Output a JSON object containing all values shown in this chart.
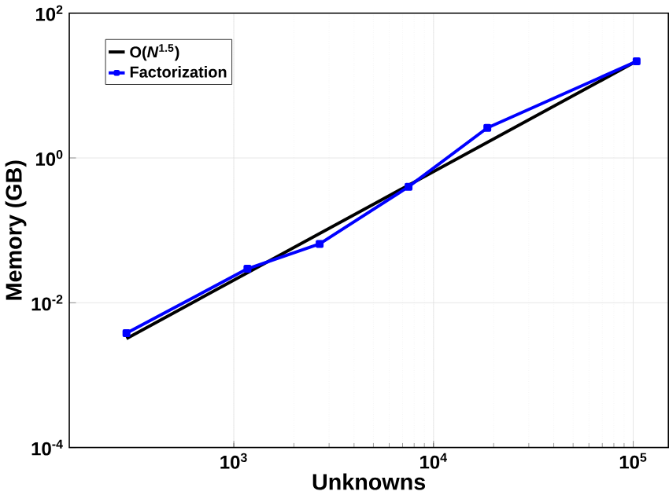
{
  "chart_data": {
    "type": "line",
    "xlabel": "Unknowns",
    "ylabel": "Memory (GB)",
    "log": "xy",
    "grid": true,
    "legend": "top left",
    "xlim": [
      150,
      150000
    ],
    "ylim": [
      0.0001,
      100
    ],
    "xticks": [
      {
        "value": 1000,
        "label": "10$^{3}$"
      },
      {
        "value": 10000,
        "label": "10$^{4}$"
      },
      {
        "value": 100000,
        "label": "10$^{5}$"
      }
    ],
    "yticks": [
      {
        "value": 0.0001,
        "label": "10$^{-4}$"
      },
      {
        "value": 0.01,
        "label": "10$^{-2}$"
      },
      {
        "value": 1,
        "label": "10$^{0}$"
      },
      {
        "value": 100,
        "label": "10$^{2}$"
      }
    ],
    "series": [
      {
        "name": "O(*N*$^{1.5}$)",
        "color": "#000000",
        "marker": "none",
        "x": [
          290,
          104000
        ],
        "values": [
          0.0032,
          21.7
        ]
      },
      {
        "name": "Factorization",
        "color": "#0000ff",
        "marker": "square",
        "x": [
          290,
          1170,
          2690,
          7500,
          18600,
          104000
        ],
        "values": [
          0.0038,
          0.0295,
          0.065,
          0.4,
          2.6,
          21.6
        ]
      }
    ]
  }
}
